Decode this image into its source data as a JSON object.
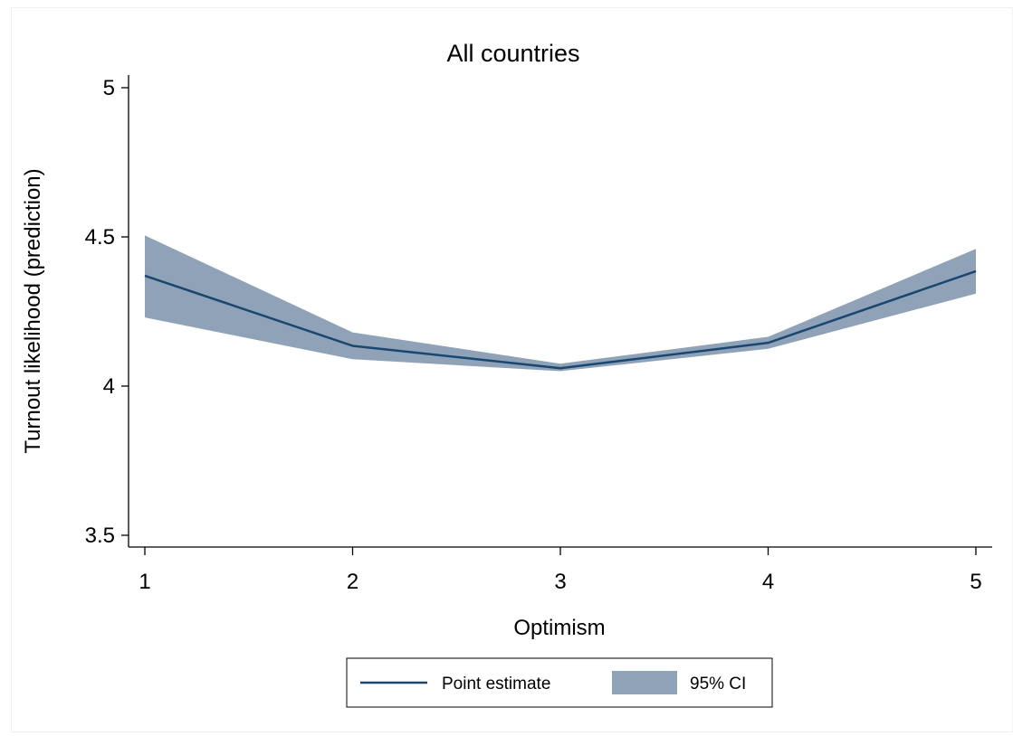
{
  "chart_data": {
    "type": "line",
    "title": "All countries",
    "xlabel": "Optimism",
    "ylabel": "Turnout likelihood (prediction)",
    "x": [
      1,
      2,
      3,
      4,
      5
    ],
    "xticks": [
      "1",
      "2",
      "3",
      "4",
      "5"
    ],
    "xlim": [
      1,
      5
    ],
    "yticks": [
      "3.5",
      "4",
      "4.5",
      "5"
    ],
    "ylim": [
      3.5,
      5
    ],
    "grid": false,
    "legend_position": "bottom",
    "series": [
      {
        "name": "Point estimate",
        "kind": "line",
        "values": [
          4.37,
          4.135,
          4.06,
          4.145,
          4.385
        ]
      },
      {
        "name": "95% CI",
        "kind": "band",
        "lower": [
          4.23,
          4.09,
          4.05,
          4.125,
          4.31
        ],
        "upper": [
          4.505,
          4.18,
          4.075,
          4.165,
          4.46
        ]
      }
    ],
    "colors": {
      "line": "#1a476f",
      "band": "#8fa2b8",
      "title": "#1a2c54"
    }
  }
}
